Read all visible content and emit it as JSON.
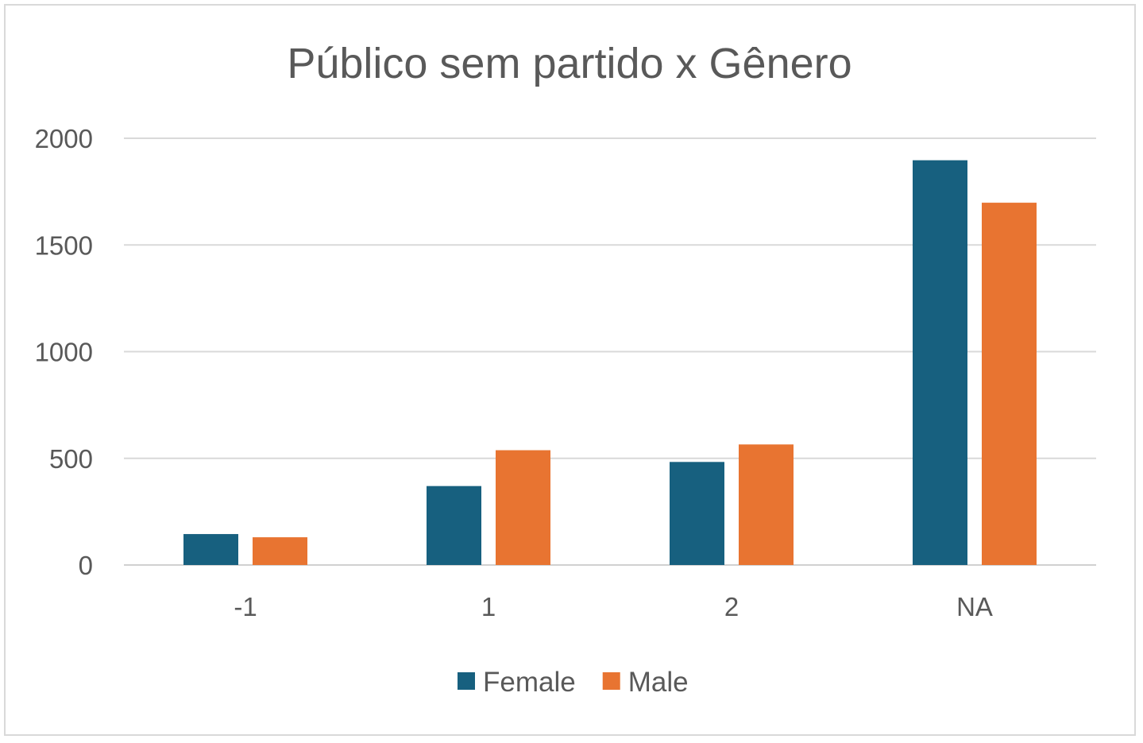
{
  "chart_data": {
    "type": "bar",
    "title": "Público sem partido x Gênero",
    "xlabel": "",
    "ylabel": "",
    "categories": [
      "-1",
      "1",
      "2",
      "NA"
    ],
    "series": [
      {
        "name": "Female",
        "color": "#17607f",
        "values": [
          145,
          370,
          483,
          1897
        ]
      },
      {
        "name": "Male",
        "color": "#e87431",
        "values": [
          130,
          538,
          565,
          1698
        ]
      }
    ],
    "ylim": [
      0,
      2000
    ],
    "yticks": [
      "0",
      "500",
      "1000",
      "1500",
      "2000"
    ],
    "grid": true,
    "legend_position": "bottom"
  }
}
